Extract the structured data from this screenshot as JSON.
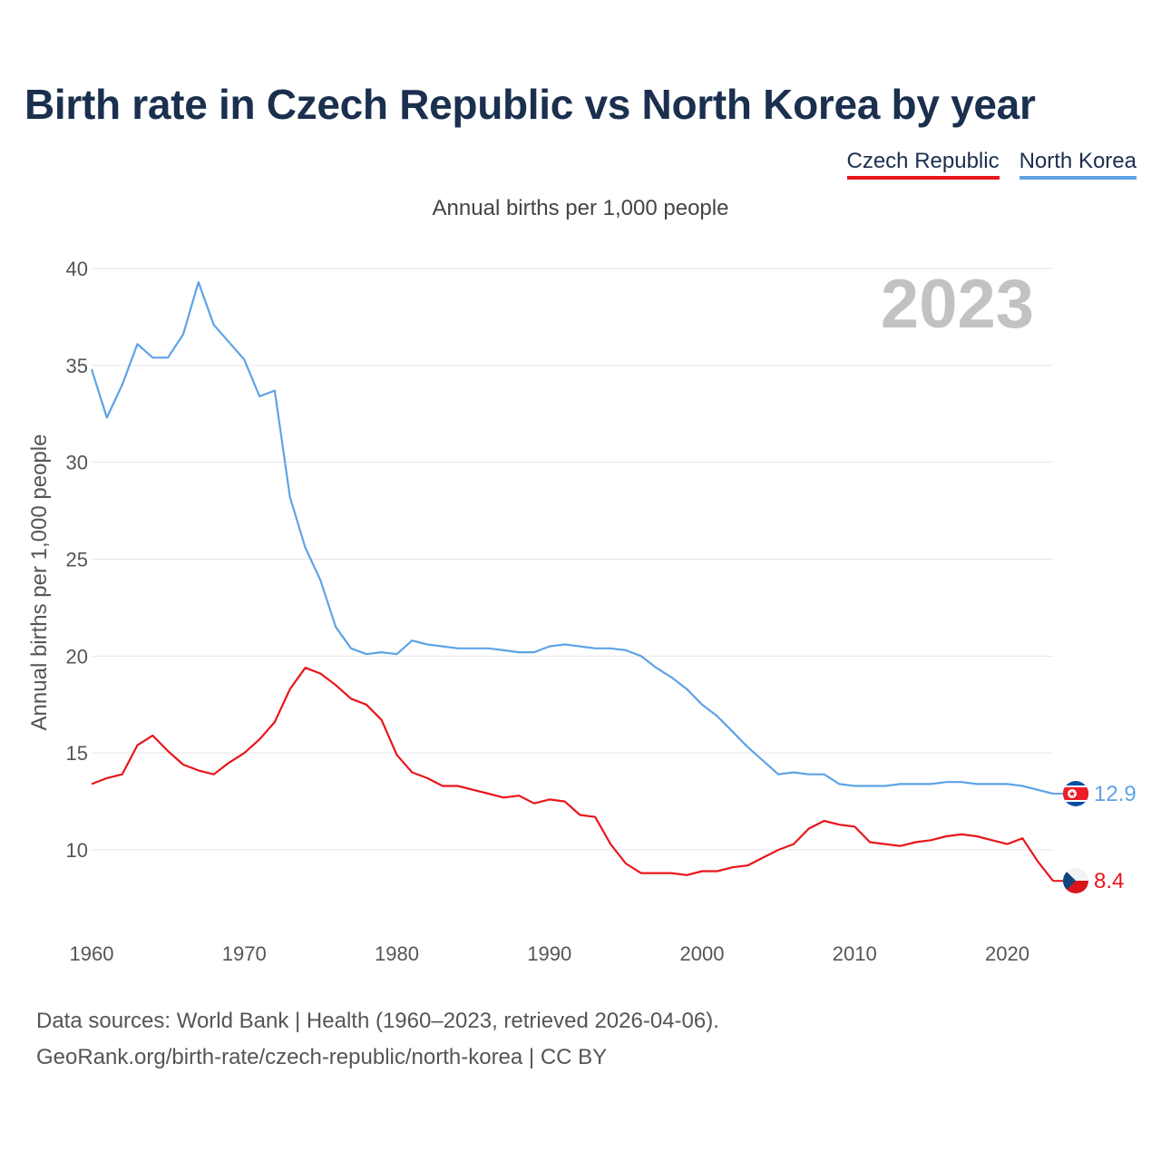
{
  "chart_data": {
    "type": "line",
    "title": "Birth rate in Czech Republic vs North Korea by year",
    "subtitle": "Annual births per 1,000 people",
    "ylabel": "Annual births per 1,000 people",
    "xlabel": "",
    "year_label": "2023",
    "xlim": [
      1960,
      2023
    ],
    "ylim": [
      10,
      40
    ],
    "x_ticks": [
      "1960",
      "1970",
      "1980",
      "1990",
      "2000",
      "2010",
      "2020"
    ],
    "y_ticks": [
      "10",
      "15",
      "20",
      "25",
      "30",
      "35",
      "40"
    ],
    "x": [
      1960,
      1961,
      1962,
      1963,
      1964,
      1965,
      1966,
      1967,
      1968,
      1969,
      1970,
      1971,
      1972,
      1973,
      1974,
      1975,
      1976,
      1977,
      1978,
      1979,
      1980,
      1981,
      1982,
      1983,
      1984,
      1985,
      1986,
      1987,
      1988,
      1989,
      1990,
      1991,
      1992,
      1993,
      1994,
      1995,
      1996,
      1997,
      1998,
      1999,
      2000,
      2001,
      2002,
      2003,
      2004,
      2005,
      2006,
      2007,
      2008,
      2009,
      2010,
      2011,
      2012,
      2013,
      2014,
      2015,
      2016,
      2017,
      2018,
      2019,
      2020,
      2021,
      2022,
      2023
    ],
    "series": [
      {
        "name": "Czech Republic",
        "color": "#e8161c",
        "end_label": "8.4",
        "flag": "czech-flag",
        "values": [
          13.4,
          13.7,
          13.9,
          15.4,
          15.9,
          15.1,
          14.4,
          14.1,
          13.9,
          14.5,
          15.0,
          15.7,
          16.6,
          18.3,
          19.4,
          19.1,
          18.5,
          17.8,
          17.5,
          16.7,
          14.9,
          14.0,
          13.7,
          13.3,
          13.3,
          13.1,
          12.9,
          12.7,
          12.8,
          12.4,
          12.6,
          12.5,
          11.8,
          11.7,
          10.3,
          9.3,
          8.8,
          8.8,
          8.8,
          8.7,
          8.9,
          8.9,
          9.1,
          9.2,
          9.6,
          10.0,
          10.3,
          11.1,
          11.5,
          11.3,
          11.2,
          10.4,
          10.3,
          10.2,
          10.4,
          10.5,
          10.7,
          10.8,
          10.7,
          10.5,
          10.3,
          10.6,
          9.4,
          8.4
        ]
      },
      {
        "name": "North Korea",
        "color": "#5ea3e6",
        "end_label": "12.9",
        "flag": "north-korea-flag",
        "values": [
          34.8,
          32.3,
          34.0,
          36.1,
          35.4,
          35.4,
          36.6,
          39.3,
          37.1,
          36.2,
          35.3,
          33.4,
          33.7,
          28.2,
          25.6,
          23.9,
          21.5,
          20.4,
          20.1,
          20.2,
          20.1,
          20.8,
          20.6,
          20.5,
          20.4,
          20.4,
          20.4,
          20.3,
          20.2,
          20.2,
          20.5,
          20.6,
          20.5,
          20.4,
          20.4,
          20.3,
          20.0,
          19.4,
          18.9,
          18.3,
          17.5,
          16.9,
          16.1,
          15.3,
          14.6,
          13.9,
          14.0,
          13.9,
          13.9,
          13.4,
          13.3,
          13.3,
          13.3,
          13.4,
          13.4,
          13.4,
          13.5,
          13.5,
          13.4,
          13.4,
          13.4,
          13.3,
          13.1,
          12.9
        ]
      }
    ],
    "grid": true,
    "legend_position": "top-right"
  },
  "footer": {
    "line1": "Data sources: World Bank | Health (1960–2023, retrieved 2026-04-06).",
    "line2": "GeoRank.org/birth-rate/czech-republic/north-korea | CC BY"
  }
}
